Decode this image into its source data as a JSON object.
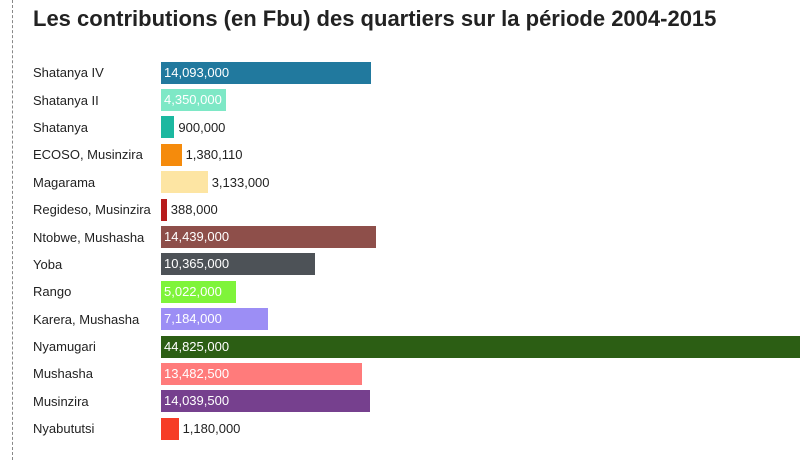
{
  "chart_data": {
    "type": "bar",
    "orientation": "horizontal",
    "title": "Les contributions (en Fbu) des quartiers sur la période 2004-2015",
    "categories": [
      "Shatanya IV",
      "Shatanya II",
      "Shatanya",
      "ECOSO, Musinzira",
      "Magarama",
      "Regideso, Musinzira",
      "Ntobwe, Mushasha",
      "Yoba",
      "Rango",
      "Karera, Mushasha",
      "Nyamugari",
      "Mushasha",
      "Musinzira",
      "Nyabututsi"
    ],
    "values": [
      14093000,
      4350000,
      900000,
      1380110,
      3133000,
      388000,
      14439000,
      10365000,
      5022000,
      7184000,
      44825000,
      13482500,
      14039500,
      1180000
    ],
    "value_labels": [
      "14,093,000",
      "4,350,000",
      "900,000",
      "1,380,110",
      "3,133,000",
      "388,000",
      "14,439,000",
      "10,365,000",
      "5,022,000",
      "7,184,000",
      "44,825,000",
      "13,482,500",
      "14,039,500",
      "1,180,000"
    ],
    "colors": [
      "#21799e",
      "#7ee8c6",
      "#1cb8a0",
      "#f58b0c",
      "#fde5a3",
      "#b71c1c",
      "#8e4f4a",
      "#4d5257",
      "#7ff43a",
      "#9c8ef5",
      "#2c5e14",
      "#ff7b7b",
      "#76408e",
      "#f63d26"
    ]
  }
}
